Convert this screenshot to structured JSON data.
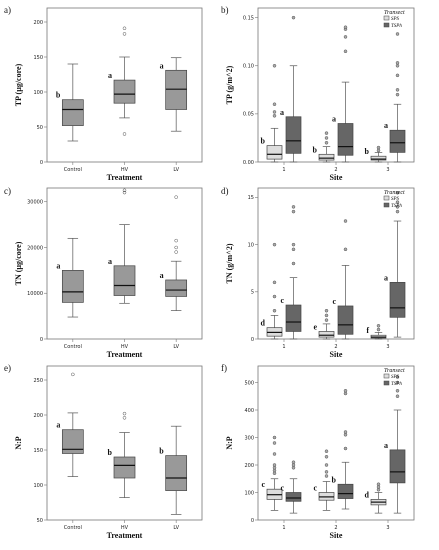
{
  "figure_colors": {
    "box_single": "#999999",
    "box_sps": "#dddddd",
    "box_tsph": "#666666",
    "frame": "#777777",
    "whisker": "#555555"
  },
  "chart_data": [
    {
      "panel": "a)",
      "type": "box",
      "xlabel": "Treatment",
      "ylabel": "TP (µg/core)",
      "ylim": [
        0,
        220
      ],
      "yticks": [
        "0",
        "50",
        "100",
        "150",
        "200"
      ],
      "categories": [
        "Control",
        "HV",
        "LV"
      ],
      "series": [
        {
          "boxes": [
            {
              "q1": 52,
              "median": 75,
              "q3": 89,
              "lo": 30,
              "hi": 140,
              "outliers": [],
              "letter": "b"
            },
            {
              "q1": 84,
              "median": 97,
              "q3": 117,
              "lo": 63,
              "hi": 150,
              "outliers": [
                183,
                191,
                40
              ],
              "letter": "a"
            },
            {
              "q1": 75,
              "median": 104,
              "q3": 131,
              "lo": 44,
              "hi": 149,
              "outliers": [],
              "letter": "a"
            }
          ]
        }
      ]
    },
    {
      "panel": "b)",
      "type": "box",
      "xlabel": "Site",
      "ylabel": "TP (g/m^2)",
      "ylim": [
        0,
        0.16
      ],
      "yticks": [
        "0.00",
        "0.05",
        "0.10",
        "0.15"
      ],
      "categories": [
        "1",
        "2",
        "3"
      ],
      "legend": {
        "title": "Transect",
        "position": "top-right"
      },
      "series": [
        {
          "name": "SPS",
          "boxes": [
            {
              "q1": 0.003,
              "median": 0.008,
              "q3": 0.017,
              "lo": 0,
              "hi": 0.035,
              "outliers": [
                0.048,
                0.052,
                0.06,
                0.1
              ],
              "letter": "b"
            },
            {
              "q1": 0.002,
              "median": 0.004,
              "q3": 0.008,
              "lo": 0,
              "hi": 0.016,
              "outliers": [
                0.02,
                0.025,
                0.03
              ],
              "letter": "b"
            },
            {
              "q1": 0.002,
              "median": 0.003,
              "q3": 0.006,
              "lo": 0,
              "hi": 0.01,
              "outliers": [
                0.012,
                0.015
              ],
              "letter": "b"
            }
          ]
        },
        {
          "name": "TSPh",
          "boxes": [
            {
              "q1": 0.009,
              "median": 0.022,
              "q3": 0.047,
              "lo": 0,
              "hi": 0.1,
              "outliers": [
                0.15
              ],
              "letter": "a"
            },
            {
              "q1": 0.007,
              "median": 0.016,
              "q3": 0.04,
              "lo": 0,
              "hi": 0.083,
              "outliers": [
                0.115,
                0.13,
                0.138,
                0.14
              ],
              "letter": "a"
            },
            {
              "q1": 0.01,
              "median": 0.02,
              "q3": 0.033,
              "lo": 0,
              "hi": 0.06,
              "outliers": [
                0.07,
                0.075,
                0.09,
                0.1,
                0.103,
                0.133
              ],
              "letter": "a"
            }
          ]
        }
      ]
    },
    {
      "panel": "c)",
      "type": "box",
      "xlabel": "Treatment",
      "ylabel": "TN (µg/core)",
      "ylim": [
        0,
        33000
      ],
      "yticks": [
        "0",
        "10000",
        "20000",
        "30000"
      ],
      "categories": [
        "Control",
        "HV",
        "LV"
      ],
      "series": [
        {
          "boxes": [
            {
              "q1": 8000,
              "median": 10300,
              "q3": 15000,
              "lo": 4800,
              "hi": 22000,
              "outliers": [],
              "letter": "a"
            },
            {
              "q1": 9500,
              "median": 11700,
              "q3": 16000,
              "lo": 7800,
              "hi": 25000,
              "outliers": [
                32000,
                32500
              ],
              "letter": "a"
            },
            {
              "q1": 9300,
              "median": 10700,
              "q3": 12900,
              "lo": 6200,
              "hi": 17000,
              "outliers": [
                19000,
                20000,
                21500,
                31000
              ],
              "letter": "a"
            }
          ]
        }
      ]
    },
    {
      "panel": "d)",
      "type": "box",
      "xlabel": "Site",
      "ylabel": "TN (g/m^2)",
      "ylim": [
        0,
        16
      ],
      "yticks": [
        "0",
        "5",
        "10",
        "15"
      ],
      "categories": [
        "1",
        "2",
        "3"
      ],
      "legend": {
        "title": "Transect",
        "position": "top-right"
      },
      "series": [
        {
          "name": "SPS",
          "boxes": [
            {
              "q1": 0.3,
              "median": 0.7,
              "q3": 1.2,
              "lo": 0,
              "hi": 2.5,
              "outliers": [
                3,
                4.5,
                6,
                10
              ],
              "letter": "d"
            },
            {
              "q1": 0.2,
              "median": 0.4,
              "q3": 0.8,
              "lo": 0,
              "hi": 1.6,
              "outliers": [
                2,
                2.5,
                3
              ],
              "letter": "e"
            },
            {
              "q1": 0.1,
              "median": 0.2,
              "q3": 0.4,
              "lo": 0,
              "hi": 0.7,
              "outliers": [
                1,
                1.4
              ],
              "letter": "f"
            }
          ]
        },
        {
          "name": "TSPh",
          "boxes": [
            {
              "q1": 0.8,
              "median": 1.8,
              "q3": 3.6,
              "lo": 0,
              "hi": 6.5,
              "outliers": [
                8,
                9.5,
                10,
                13.5,
                14
              ],
              "letter": "c"
            },
            {
              "q1": 0.5,
              "median": 1.5,
              "q3": 3.5,
              "lo": 0,
              "hi": 7.8,
              "outliers": [
                9.5,
                12.5
              ],
              "letter": "c"
            },
            {
              "q1": 2.3,
              "median": 3.3,
              "q3": 6,
              "lo": 0.2,
              "hi": 12.5,
              "outliers": [
                13.5,
                14,
                14.5,
                15.5
              ],
              "letter": "a"
            }
          ]
        }
      ]
    },
    {
      "panel": "e)",
      "type": "box",
      "xlabel": "Treatment",
      "ylabel": "N:P",
      "ylim": [
        50,
        270
      ],
      "yticks": [
        "50",
        "100",
        "150",
        "200",
        "250"
      ],
      "categories": [
        "Control",
        "HV",
        "LV"
      ],
      "series": [
        {
          "boxes": [
            {
              "q1": 145,
              "median": 151,
              "q3": 179,
              "lo": 112,
              "hi": 203,
              "outliers": [
                258
              ],
              "letter": "a"
            },
            {
              "q1": 110,
              "median": 128,
              "q3": 140,
              "lo": 82,
              "hi": 175,
              "outliers": [
                196,
                202
              ],
              "letter": "b"
            },
            {
              "q1": 92,
              "median": 110,
              "q3": 142,
              "lo": 58,
              "hi": 184,
              "outliers": [],
              "letter": "b"
            }
          ]
        }
      ]
    },
    {
      "panel": "f)",
      "type": "box",
      "xlabel": "Site",
      "ylabel": "N:P",
      "ylim": [
        0,
        560
      ],
      "yticks": [
        "0",
        "100",
        "200",
        "300",
        "400",
        "500"
      ],
      "categories": [
        "1",
        "2",
        "3"
      ],
      "legend": {
        "title": "Transect",
        "position": "top-right"
      },
      "series": [
        {
          "name": "SPS",
          "boxes": [
            {
              "q1": 75,
              "median": 92,
              "q3": 112,
              "lo": 35,
              "hi": 150,
              "outliers": [
                170,
                180,
                190,
                200,
                240,
                280,
                300
              ],
              "letter": "c"
            },
            {
              "q1": 72,
              "median": 84,
              "q3": 100,
              "lo": 35,
              "hi": 140,
              "outliers": [
                160,
                175,
                200,
                230,
                250
              ],
              "letter": "c"
            },
            {
              "q1": 55,
              "median": 65,
              "q3": 75,
              "lo": 25,
              "hi": 100,
              "outliers": [
                110,
                120,
                130
              ],
              "letter": "d"
            }
          ]
        },
        {
          "name": "TSPh",
          "boxes": [
            {
              "q1": 68,
              "median": 80,
              "q3": 100,
              "lo": 25,
              "hi": 150,
              "outliers": [
                190,
                200,
                210
              ],
              "letter": "c"
            },
            {
              "q1": 78,
              "median": 96,
              "q3": 130,
              "lo": 40,
              "hi": 210,
              "outliers": [
                260,
                310,
                320,
                460,
                470
              ],
              "letter": "b"
            },
            {
              "q1": 135,
              "median": 175,
              "q3": 255,
              "lo": 25,
              "hi": 400,
              "outliers": [
                450,
                470,
                500,
                520
              ],
              "letter": "a"
            }
          ]
        }
      ]
    }
  ]
}
